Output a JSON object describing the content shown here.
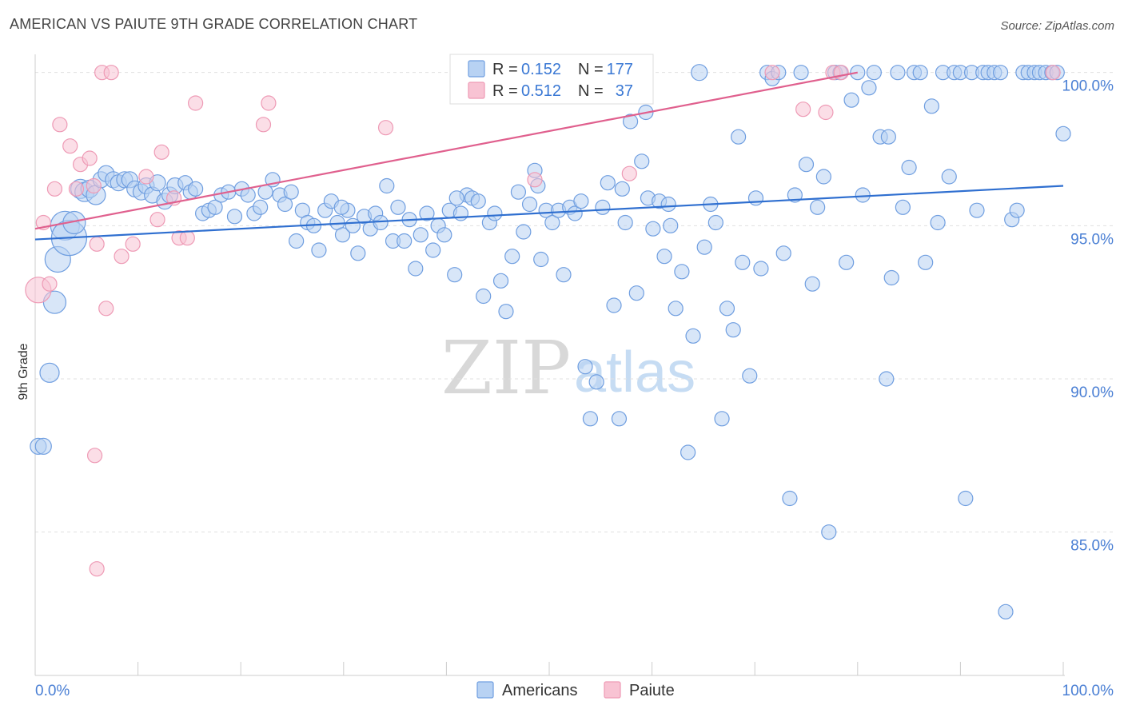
{
  "header": {
    "title": "AMERICAN VS PAIUTE 9TH GRADE CORRELATION CHART",
    "source": "Source: ZipAtlas.com"
  },
  "watermark": {
    "zip": "ZIP",
    "atlas": "atlas"
  },
  "legend_top": [
    {
      "r_label": "R =",
      "r_value": "0.152",
      "n_label": "N =",
      "n_value": "177"
    },
    {
      "r_label": "R =",
      "r_value": "0.512",
      "n_label": "N =",
      "n_value": "37"
    }
  ],
  "legend_bottom": [
    {
      "label": "Americans"
    },
    {
      "label": "Paiute"
    }
  ],
  "colors": {
    "americans_fill": "#b8d2f3",
    "americans_stroke": "#6f9ee0",
    "americans_line": "#2f6fd0",
    "paiute_fill": "#f8c3d3",
    "paiute_stroke": "#ee9ab5",
    "paiute_line": "#e0608e",
    "tick_text": "#4a7fd4"
  },
  "chart_data": {
    "type": "scatter",
    "title": "AMERICAN VS PAIUTE 9TH GRADE CORRELATION CHART",
    "xlabel": "",
    "ylabel": "9th Grade",
    "xlim": [
      0,
      100
    ],
    "ylim": [
      80.4,
      100.8
    ],
    "x_tick_labels": [
      "0.0%",
      "100.0%"
    ],
    "y_ticks": [
      {
        "value": 85,
        "label": "85.0%"
      },
      {
        "value": 90,
        "label": "90.0%"
      },
      {
        "value": 95,
        "label": "95.0%"
      },
      {
        "value": 100,
        "label": "100.0%"
      }
    ],
    "grid": true,
    "legend_position": "top-center",
    "series": [
      {
        "name": "Americans",
        "r": 0.152,
        "n": 177,
        "trend": {
          "x": [
            0,
            100
          ],
          "y": [
            94.55,
            96.3
          ]
        },
        "points": [
          [
            0.3,
            87.8,
            10
          ],
          [
            0.8,
            87.8,
            10
          ],
          [
            1.4,
            90.2,
            12
          ],
          [
            1.9,
            92.5,
            14
          ],
          [
            2.2,
            93.9,
            16
          ],
          [
            2.9,
            95.0,
            18
          ],
          [
            3.3,
            94.6,
            22
          ],
          [
            3.8,
            95.1,
            14
          ],
          [
            4.4,
            96.2,
            12
          ],
          [
            4.8,
            96.1,
            12
          ],
          [
            5.3,
            96.2,
            11
          ],
          [
            5.9,
            96.0,
            12
          ],
          [
            6.4,
            96.5,
            10
          ],
          [
            6.9,
            96.7,
            10
          ],
          [
            7.6,
            96.5,
            10
          ],
          [
            8.1,
            96.4,
            10
          ],
          [
            8.7,
            96.5,
            10
          ],
          [
            9.2,
            96.5,
            10
          ],
          [
            9.7,
            96.2,
            10
          ],
          [
            10.3,
            96.1,
            10
          ],
          [
            10.8,
            96.3,
            10
          ],
          [
            11.4,
            96.0,
            10
          ],
          [
            11.9,
            96.4,
            10
          ],
          [
            12.6,
            95.8,
            10
          ],
          [
            13.1,
            96.0,
            10
          ],
          [
            13.6,
            96.3,
            10
          ],
          [
            14.6,
            96.4,
            9
          ],
          [
            15.1,
            96.1,
            9
          ],
          [
            15.6,
            96.2,
            9
          ],
          [
            16.3,
            95.4,
            9
          ],
          [
            16.9,
            95.5,
            9
          ],
          [
            17.5,
            95.6,
            9
          ],
          [
            18.1,
            96.0,
            9
          ],
          [
            18.8,
            96.1,
            9
          ],
          [
            19.4,
            95.3,
            9
          ],
          [
            20.1,
            96.2,
            9
          ],
          [
            20.7,
            96.0,
            9
          ],
          [
            21.3,
            95.4,
            9
          ],
          [
            21.9,
            95.6,
            9
          ],
          [
            22.4,
            96.1,
            9
          ],
          [
            23.1,
            96.5,
            9
          ],
          [
            23.8,
            96.0,
            9
          ],
          [
            24.3,
            95.7,
            9
          ],
          [
            24.9,
            96.1,
            9
          ],
          [
            25.4,
            94.5,
            9
          ],
          [
            26.0,
            95.5,
            9
          ],
          [
            26.5,
            95.1,
            9
          ],
          [
            27.1,
            95.0,
            9
          ],
          [
            27.6,
            94.2,
            9
          ],
          [
            28.2,
            95.5,
            9
          ],
          [
            28.8,
            95.8,
            9
          ],
          [
            29.4,
            95.1,
            9
          ],
          [
            29.9,
            94.7,
            9
          ],
          [
            30.4,
            95.5,
            9
          ],
          [
            30.9,
            95.0,
            9
          ],
          [
            31.4,
            94.1,
            9
          ],
          [
            32.0,
            95.3,
            9
          ],
          [
            32.6,
            94.9,
            9
          ],
          [
            33.1,
            95.4,
            9
          ],
          [
            33.6,
            95.1,
            9
          ],
          [
            34.2,
            96.3,
            9
          ],
          [
            34.8,
            94.5,
            9
          ],
          [
            35.3,
            95.6,
            9
          ],
          [
            35.9,
            94.5,
            9
          ],
          [
            36.4,
            95.2,
            9
          ],
          [
            37.0,
            93.6,
            9
          ],
          [
            37.5,
            94.7,
            9
          ],
          [
            38.1,
            95.4,
            9
          ],
          [
            38.7,
            94.2,
            9
          ],
          [
            39.2,
            95.0,
            9
          ],
          [
            39.8,
            94.7,
            9
          ],
          [
            40.3,
            95.5,
            9
          ],
          [
            40.8,
            93.4,
            9
          ],
          [
            41.4,
            95.4,
            9
          ],
          [
            42.0,
            96.0,
            9
          ],
          [
            42.5,
            95.9,
            9
          ],
          [
            43.1,
            95.8,
            9
          ],
          [
            43.6,
            92.7,
            9
          ],
          [
            44.2,
            95.1,
            9
          ],
          [
            44.7,
            95.4,
            9
          ],
          [
            45.3,
            93.2,
            9
          ],
          [
            45.8,
            92.2,
            9
          ],
          [
            46.4,
            94.0,
            9
          ],
          [
            47.0,
            96.1,
            9
          ],
          [
            47.5,
            94.8,
            9
          ],
          [
            48.1,
            95.7,
            9
          ],
          [
            48.6,
            96.8,
            9
          ],
          [
            49.2,
            93.9,
            9
          ],
          [
            49.7,
            95.5,
            9
          ],
          [
            50.3,
            95.1,
            9
          ],
          [
            50.9,
            95.5,
            9
          ],
          [
            51.4,
            93.4,
            9
          ],
          [
            52.0,
            95.6,
            9
          ],
          [
            52.5,
            95.4,
            9
          ],
          [
            53.1,
            95.8,
            9
          ],
          [
            53.5,
            90.4,
            9
          ],
          [
            54.0,
            88.7,
            9
          ],
          [
            54.6,
            89.9,
            9
          ],
          [
            55.2,
            95.6,
            9
          ],
          [
            55.7,
            96.4,
            9
          ],
          [
            56.3,
            92.4,
            9
          ],
          [
            56.8,
            88.7,
            9
          ],
          [
            57.4,
            95.1,
            9
          ],
          [
            57.9,
            98.4,
            9
          ],
          [
            58.5,
            92.8,
            9
          ],
          [
            59.0,
            97.1,
            9
          ],
          [
            59.4,
            98.7,
            9
          ],
          [
            59.6,
            95.9,
            9
          ],
          [
            60.1,
            94.9,
            9
          ],
          [
            60.7,
            95.8,
            9
          ],
          [
            61.2,
            94.0,
            9
          ],
          [
            61.8,
            95.0,
            9
          ],
          [
            62.3,
            92.3,
            9
          ],
          [
            62.9,
            93.5,
            9
          ],
          [
            63.5,
            87.6,
            9
          ],
          [
            64.0,
            91.4,
            9
          ],
          [
            64.6,
            100.0,
            10
          ],
          [
            65.1,
            94.3,
            9
          ],
          [
            65.7,
            95.7,
            9
          ],
          [
            66.2,
            95.1,
            9
          ],
          [
            66.8,
            88.7,
            9
          ],
          [
            67.3,
            92.3,
            9
          ],
          [
            67.9,
            91.6,
            9
          ],
          [
            68.4,
            97.9,
            9
          ],
          [
            68.8,
            93.8,
            9
          ],
          [
            69.5,
            90.1,
            9
          ],
          [
            70.1,
            95.9,
            9
          ],
          [
            70.6,
            93.6,
            9
          ],
          [
            71.2,
            100.0,
            9
          ],
          [
            71.7,
            99.8,
            9
          ],
          [
            72.3,
            100.0,
            9
          ],
          [
            72.8,
            94.1,
            9
          ],
          [
            73.4,
            86.1,
            9
          ],
          [
            73.9,
            96.0,
            9
          ],
          [
            74.5,
            100.0,
            9
          ],
          [
            75.0,
            97.0,
            9
          ],
          [
            75.6,
            93.1,
            9
          ],
          [
            76.1,
            95.6,
            9
          ],
          [
            76.7,
            96.6,
            9
          ],
          [
            77.2,
            85.0,
            9
          ],
          [
            77.8,
            100.0,
            9
          ],
          [
            78.3,
            100.0,
            9
          ],
          [
            78.9,
            93.8,
            9
          ],
          [
            79.4,
            99.1,
            9
          ],
          [
            80.0,
            100.0,
            9
          ],
          [
            80.5,
            96.0,
            9
          ],
          [
            81.1,
            99.5,
            9
          ],
          [
            81.6,
            100.0,
            9
          ],
          [
            82.2,
            97.9,
            9
          ],
          [
            82.8,
            90.0,
            9
          ],
          [
            83.3,
            93.3,
            9
          ],
          [
            83.9,
            100.0,
            9
          ],
          [
            84.4,
            95.6,
            9
          ],
          [
            85.0,
            96.9,
            9
          ],
          [
            85.5,
            100.0,
            9
          ],
          [
            86.1,
            100.0,
            9
          ],
          [
            86.6,
            93.8,
            9
          ],
          [
            87.2,
            98.9,
            9
          ],
          [
            87.8,
            95.1,
            9
          ],
          [
            88.3,
            100.0,
            9
          ],
          [
            88.9,
            96.6,
            9
          ],
          [
            89.4,
            100.0,
            9
          ],
          [
            90.0,
            100.0,
            9
          ],
          [
            90.5,
            86.1,
            9
          ],
          [
            91.1,
            100.0,
            9
          ],
          [
            91.6,
            95.5,
            9
          ],
          [
            92.2,
            100.0,
            9
          ],
          [
            92.7,
            100.0,
            9
          ],
          [
            93.3,
            100.0,
            9
          ],
          [
            93.9,
            100.0,
            9
          ],
          [
            94.4,
            82.4,
            9
          ],
          [
            95.0,
            95.2,
            9
          ],
          [
            95.5,
            95.5,
            9
          ],
          [
            96.1,
            100.0,
            9
          ],
          [
            96.6,
            100.0,
            9
          ],
          [
            97.2,
            100.0,
            9
          ],
          [
            97.7,
            100.0,
            9
          ],
          [
            98.3,
            100.0,
            9
          ],
          [
            98.9,
            100.0,
            9
          ],
          [
            99.4,
            100.0,
            9
          ],
          [
            100.0,
            98.0,
            9
          ],
          [
            29.8,
            95.6,
            9
          ],
          [
            41.0,
            95.9,
            9
          ],
          [
            48.9,
            96.3,
            9
          ],
          [
            57.1,
            96.2,
            9
          ],
          [
            61.6,
            95.7,
            9
          ],
          [
            83.0,
            97.9,
            9
          ]
        ]
      },
      {
        "name": "Paiute",
        "r": 0.512,
        "n": 37,
        "trend": {
          "x": [
            0,
            80
          ],
          "y": [
            94.9,
            100.0
          ]
        },
        "points": [
          [
            0.3,
            92.9,
            16
          ],
          [
            0.8,
            95.1,
            9
          ],
          [
            1.4,
            93.1,
            9
          ],
          [
            1.9,
            96.2,
            9
          ],
          [
            2.4,
            98.3,
            9
          ],
          [
            3.4,
            97.6,
            9
          ],
          [
            4.0,
            96.2,
            9
          ],
          [
            4.4,
            97.0,
            9
          ],
          [
            5.3,
            97.2,
            9
          ],
          [
            5.7,
            96.3,
            9
          ],
          [
            6.0,
            94.4,
            9
          ],
          [
            6.5,
            100.0,
            9
          ],
          [
            5.8,
            87.5,
            9
          ],
          [
            6.0,
            83.8,
            9
          ],
          [
            6.9,
            92.3,
            9
          ],
          [
            7.4,
            100.0,
            9
          ],
          [
            8.4,
            94.0,
            9
          ],
          [
            9.5,
            94.4,
            9
          ],
          [
            10.8,
            96.6,
            9
          ],
          [
            11.9,
            95.2,
            9
          ],
          [
            12.3,
            97.4,
            9
          ],
          [
            13.5,
            95.9,
            9
          ],
          [
            14.0,
            94.6,
            9
          ],
          [
            14.8,
            94.6,
            9
          ],
          [
            15.6,
            99.0,
            9
          ],
          [
            22.2,
            98.3,
            9
          ],
          [
            22.7,
            99.0,
            9
          ],
          [
            34.1,
            98.2,
            9
          ],
          [
            48.6,
            96.5,
            9
          ],
          [
            49.3,
            100.0,
            9
          ],
          [
            57.8,
            96.7,
            9
          ],
          [
            71.7,
            100.0,
            9
          ],
          [
            74.7,
            98.8,
            9
          ],
          [
            76.9,
            98.7,
            9
          ],
          [
            77.6,
            100.0,
            9
          ],
          [
            78.4,
            100.0,
            9
          ],
          [
            99.0,
            100.0,
            9
          ]
        ]
      }
    ]
  }
}
